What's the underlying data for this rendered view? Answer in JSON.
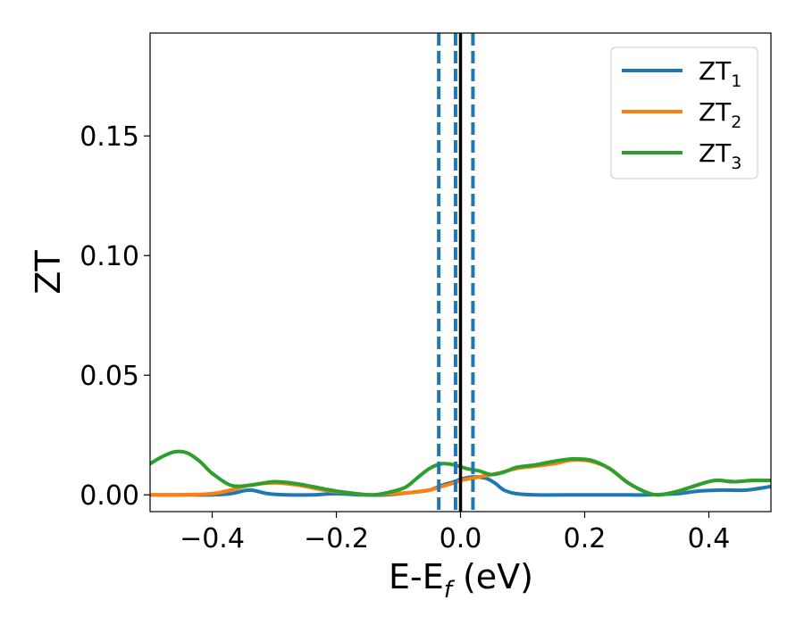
{
  "chart_data": {
    "type": "line",
    "title": "",
    "xlabel": "E-E",
    "xlabel_sub": "f",
    "xlabel_unit": " (eV)",
    "ylabel": "ZT",
    "xlim": [
      -0.5,
      0.5
    ],
    "ylim": [
      -0.007,
      0.193
    ],
    "x_ticks": [
      -0.4,
      -0.2,
      0.0,
      0.2,
      0.4
    ],
    "x_tick_labels": [
      "−0.4",
      "−0.2",
      "0.0",
      "0.2",
      "0.4"
    ],
    "y_ticks": [
      0.0,
      0.05,
      0.1,
      0.15
    ],
    "y_tick_labels": [
      "0.00",
      "0.05",
      "0.10",
      "0.15"
    ],
    "grid": false,
    "legend_position": "top-right",
    "vlines": [
      {
        "x": -0.035,
        "style": "dashed",
        "color": "#1f77b4"
      },
      {
        "x": -0.008,
        "style": "dashed",
        "color": "#1f77b4"
      },
      {
        "x": 0.02,
        "style": "dashed",
        "color": "#1f77b4"
      },
      {
        "x": 0.0,
        "style": "solid",
        "color": "#000000"
      }
    ],
    "series": [
      {
        "name": "ZT",
        "name_sub": "1",
        "color": "#1f77b4",
        "points": [
          [
            -0.5,
            0.0
          ],
          [
            -0.45,
            0.0
          ],
          [
            -0.4,
            0.0
          ],
          [
            -0.37,
            0.0005
          ],
          [
            -0.34,
            0.002
          ],
          [
            -0.31,
            0.0005
          ],
          [
            -0.28,
            0.0
          ],
          [
            -0.24,
            0.0
          ],
          [
            -0.2,
            0.0005
          ],
          [
            -0.16,
            0.0
          ],
          [
            -0.12,
            0.0
          ],
          [
            -0.08,
            0.001
          ],
          [
            -0.05,
            0.002
          ],
          [
            -0.03,
            0.004
          ],
          [
            -0.01,
            0.0055
          ],
          [
            0.0,
            0.0065
          ],
          [
            0.02,
            0.0075
          ],
          [
            0.04,
            0.007
          ],
          [
            0.055,
            0.005
          ],
          [
            0.07,
            0.002
          ],
          [
            0.09,
            0.0005
          ],
          [
            0.12,
            0.0
          ],
          [
            0.2,
            0.0
          ],
          [
            0.25,
            0.0
          ],
          [
            0.3,
            0.0
          ],
          [
            0.35,
            0.0005
          ],
          [
            0.38,
            0.0015
          ],
          [
            0.42,
            0.002
          ],
          [
            0.46,
            0.002
          ],
          [
            0.5,
            0.0035
          ]
        ]
      },
      {
        "name": "ZT",
        "name_sub": "2",
        "color": "#ff7f0e",
        "points": [
          [
            -0.5,
            0.0
          ],
          [
            -0.45,
            0.0
          ],
          [
            -0.4,
            0.0005
          ],
          [
            -0.37,
            0.002
          ],
          [
            -0.34,
            0.004
          ],
          [
            -0.3,
            0.005
          ],
          [
            -0.26,
            0.004
          ],
          [
            -0.22,
            0.002
          ],
          [
            -0.18,
            0.0008
          ],
          [
            -0.15,
            0.0
          ],
          [
            -0.12,
            0.0003
          ],
          [
            -0.08,
            0.001
          ],
          [
            -0.05,
            0.002
          ],
          [
            -0.03,
            0.0035
          ],
          [
            -0.01,
            0.005
          ],
          [
            0.0,
            0.006
          ],
          [
            0.03,
            0.0075
          ],
          [
            0.06,
            0.009
          ],
          [
            0.09,
            0.011
          ],
          [
            0.12,
            0.012
          ],
          [
            0.15,
            0.013
          ],
          [
            0.18,
            0.0145
          ],
          [
            0.21,
            0.014
          ],
          [
            0.24,
            0.011
          ],
          [
            0.27,
            0.005
          ],
          [
            0.3,
            0.001
          ],
          [
            0.32,
            0.0
          ],
          [
            0.35,
            0.0015
          ],
          [
            0.38,
            0.004
          ],
          [
            0.41,
            0.006
          ],
          [
            0.44,
            0.0055
          ],
          [
            0.47,
            0.006
          ],
          [
            0.5,
            0.006
          ]
        ]
      },
      {
        "name": "ZT",
        "name_sub": "3",
        "color": "#2ca02c",
        "points": [
          [
            -0.5,
            0.013
          ],
          [
            -0.48,
            0.016
          ],
          [
            -0.46,
            0.018
          ],
          [
            -0.44,
            0.0175
          ],
          [
            -0.42,
            0.014
          ],
          [
            -0.4,
            0.009
          ],
          [
            -0.37,
            0.004
          ],
          [
            -0.34,
            0.004
          ],
          [
            -0.3,
            0.0055
          ],
          [
            -0.26,
            0.0045
          ],
          [
            -0.22,
            0.0025
          ],
          [
            -0.19,
            0.0012
          ],
          [
            -0.16,
            0.0003
          ],
          [
            -0.14,
            0.0
          ],
          [
            -0.12,
            0.0008
          ],
          [
            -0.09,
            0.003
          ],
          [
            -0.07,
            0.007
          ],
          [
            -0.05,
            0.011
          ],
          [
            -0.03,
            0.013
          ],
          [
            -0.01,
            0.0125
          ],
          [
            0.01,
            0.011
          ],
          [
            0.03,
            0.01
          ],
          [
            0.05,
            0.0085
          ],
          [
            0.07,
            0.0095
          ],
          [
            0.09,
            0.0115
          ],
          [
            0.12,
            0.0125
          ],
          [
            0.15,
            0.014
          ],
          [
            0.18,
            0.015
          ],
          [
            0.21,
            0.0145
          ],
          [
            0.24,
            0.011
          ],
          [
            0.27,
            0.005
          ],
          [
            0.3,
            0.001
          ],
          [
            0.32,
            0.0
          ],
          [
            0.35,
            0.0015
          ],
          [
            0.38,
            0.004
          ],
          [
            0.41,
            0.006
          ],
          [
            0.44,
            0.0055
          ],
          [
            0.47,
            0.006
          ],
          [
            0.5,
            0.006
          ]
        ]
      }
    ]
  }
}
